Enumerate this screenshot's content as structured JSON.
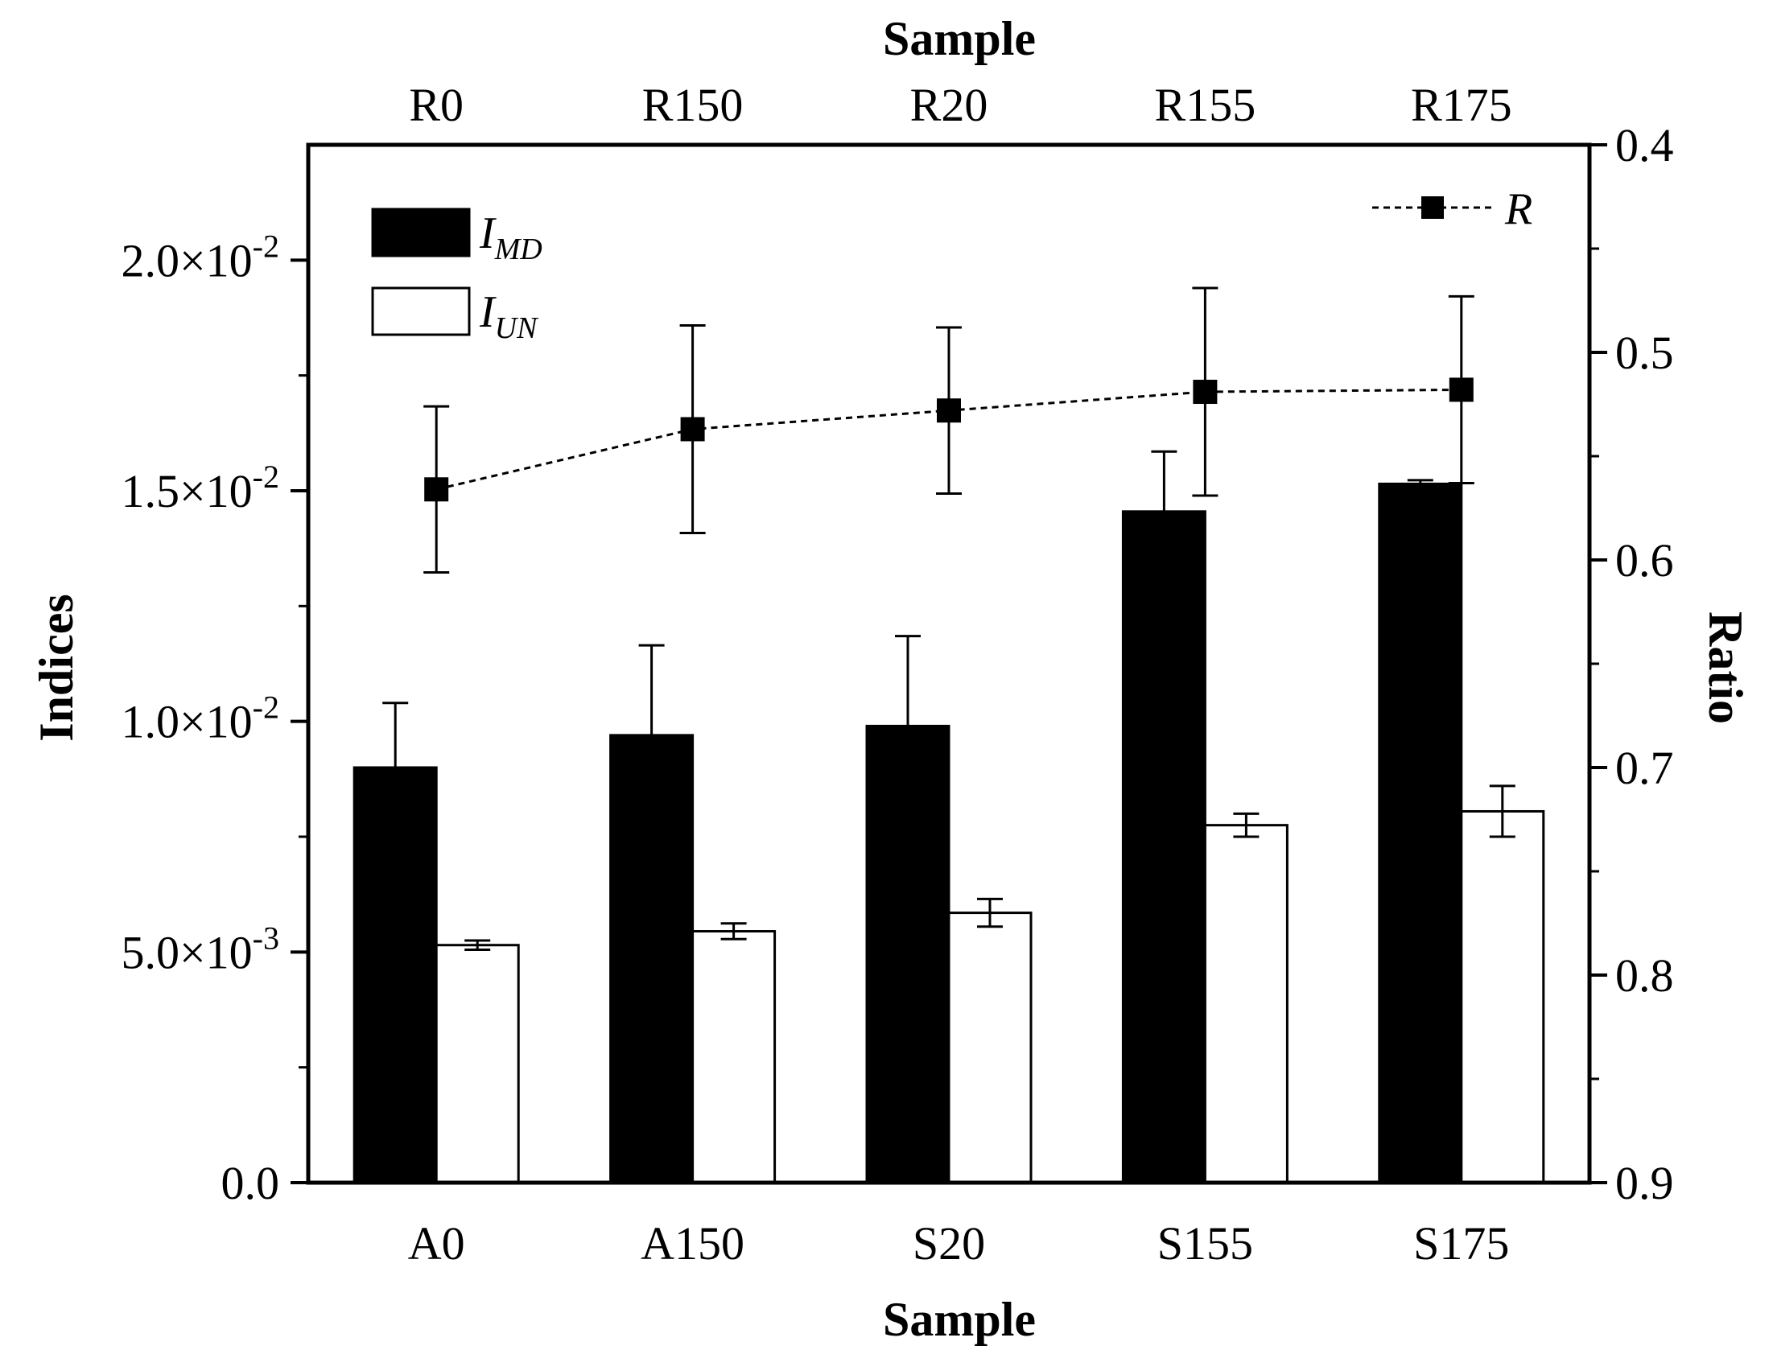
{
  "chart_data": {
    "type": "bar",
    "categories": [
      "A0",
      "A150",
      "S20",
      "S155",
      "S175"
    ],
    "top_categories": [
      "R0",
      "R150",
      "R20",
      "R155",
      "R175"
    ],
    "series": [
      {
        "name": "I_MD",
        "label_main": "I",
        "label_sub": "MD",
        "axis": "left",
        "fill": "#000000",
        "values": [
          0.009,
          0.0097,
          0.0099,
          0.01455,
          0.01515
        ],
        "errors": [
          0.0014,
          0.00195,
          0.00195,
          0.0013,
          8e-05
        ]
      },
      {
        "name": "I_UN",
        "label_main": "I",
        "label_sub": "UN",
        "axis": "left",
        "fill": "#ffffff",
        "values": [
          0.00515,
          0.00545,
          0.00585,
          0.00775,
          0.00805
        ],
        "errors": [
          0.0001,
          0.00017,
          0.0003,
          0.00025,
          0.00055
        ]
      },
      {
        "name": "R",
        "label_main": "R",
        "type": "line",
        "axis": "right",
        "values": [
          0.566,
          0.537,
          0.528,
          0.519,
          0.518
        ],
        "errors": [
          0.04,
          0.05,
          0.04,
          0.05,
          0.045
        ]
      }
    ],
    "left_axis": {
      "title": "Indices",
      "ylim": [
        0,
        0.0225
      ],
      "ticks": [
        {
          "value": 0.0,
          "label": "0.0",
          "exp": ""
        },
        {
          "value": 0.005,
          "label": "5.0×10",
          "exp": "-3"
        },
        {
          "value": 0.01,
          "label": "1.0×10",
          "exp": "-2"
        },
        {
          "value": 0.015,
          "label": "1.5×10",
          "exp": "-2"
        },
        {
          "value": 0.02,
          "label": "2.0×10",
          "exp": "-2"
        }
      ],
      "minor_step": 0.0025
    },
    "right_axis": {
      "title": "Ratio",
      "ylim": [
        0.4,
        0.9
      ],
      "inverted": true,
      "ticks": [
        {
          "value": 0.4,
          "label": "0.4"
        },
        {
          "value": 0.5,
          "label": "0.5"
        },
        {
          "value": 0.6,
          "label": "0.6"
        },
        {
          "value": 0.7,
          "label": "0.7"
        },
        {
          "value": 0.8,
          "label": "0.8"
        },
        {
          "value": 0.9,
          "label": "0.9"
        }
      ],
      "minor_step": 0.05
    },
    "xlabel_bottom": "Sample",
    "xlabel_top": "Sample",
    "legend_left": "top-left",
    "legend_right": "top-right"
  }
}
